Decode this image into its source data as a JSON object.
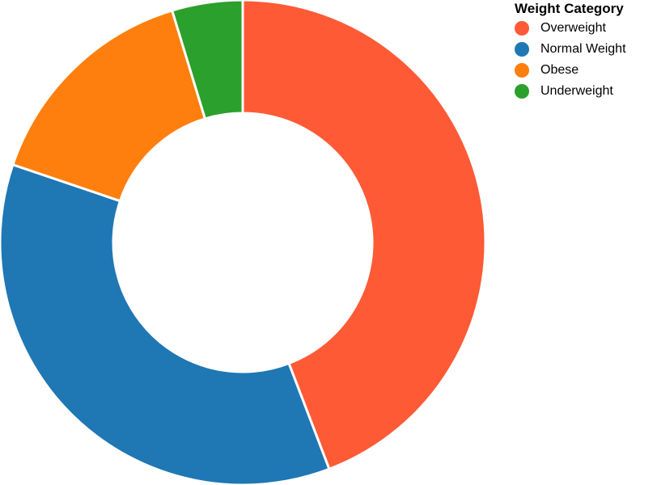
{
  "chart_data": {
    "type": "pie",
    "variant": "donut",
    "title": "",
    "legend": {
      "title": "Weight Category",
      "placement": "top-right"
    },
    "categories": [
      "Overweight",
      "Normal Weight",
      "Obese",
      "Underweight"
    ],
    "values": [
      44.2,
      36.0,
      15.1,
      4.7
    ],
    "colors": [
      "#fe5a36",
      "#1f77b4",
      "#ff7f0e",
      "#2ca02c"
    ]
  }
}
